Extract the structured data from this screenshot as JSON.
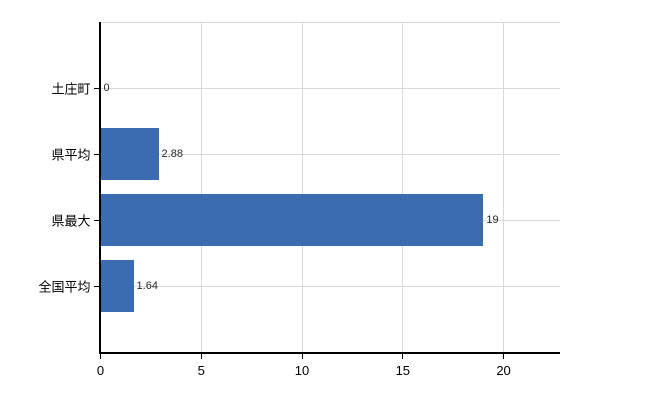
{
  "chart_data": {
    "type": "bar",
    "orientation": "horizontal",
    "title": "",
    "xlabel": "",
    "ylabel": "",
    "categories": [
      "土庄町",
      "県平均",
      "県最大",
      "全国平均"
    ],
    "values": [
      0,
      2.88,
      19,
      1.64
    ],
    "data_labels": [
      "0",
      "2.88",
      "19",
      "1.64"
    ],
    "x_ticks": [
      0,
      5,
      10,
      15,
      20
    ],
    "x_tick_labels": [
      "0",
      "5",
      "10",
      "15",
      "20"
    ],
    "xlim": [
      0,
      22.8
    ],
    "grid": true,
    "legend": false,
    "colors": {
      "bar": "#3c6cb0",
      "gridline": "#d9d9d9",
      "axis": "#000000",
      "category_text": "#000000",
      "data_label_text": "#262626"
    }
  }
}
